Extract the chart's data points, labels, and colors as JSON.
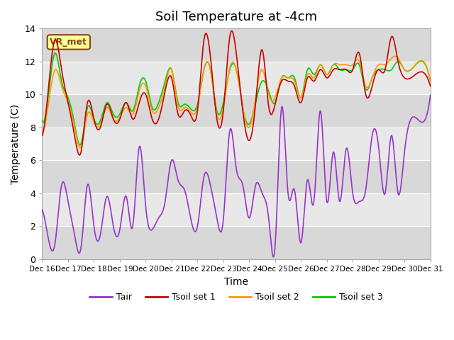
{
  "title": "Soil Temperature at -4cm",
  "xlabel": "Time",
  "ylabel": "Temperature (C)",
  "ylim": [
    0,
    14
  ],
  "xlim": [
    0,
    360
  ],
  "annotation": "VR_met",
  "series_colors": [
    "#9933cc",
    "#cc0000",
    "#ff9900",
    "#00cc00"
  ],
  "series_labels": [
    "Tair",
    "Tsoil set 1",
    "Tsoil set 2",
    "Tsoil set 3"
  ],
  "xtick_labels": [
    "Dec 16",
    "Dec 17",
    "Dec 18",
    "Dec 19",
    "Dec 20",
    "Dec 21",
    "Dec 22",
    "Dec 23",
    "Dec 24",
    "Dec 25",
    "Dec 26",
    "Dec 27",
    "Dec 28",
    "Dec 29",
    "Dec 30",
    "Dec 31"
  ],
  "xtick_positions": [
    0,
    24,
    48,
    72,
    96,
    120,
    144,
    168,
    192,
    216,
    240,
    264,
    288,
    312,
    336,
    360
  ],
  "bg_color": "#ffffff",
  "plot_bg_color": "#e8e8e8",
  "grid_color": "#ffffff",
  "title_fontsize": 13,
  "label_fontsize": 10
}
